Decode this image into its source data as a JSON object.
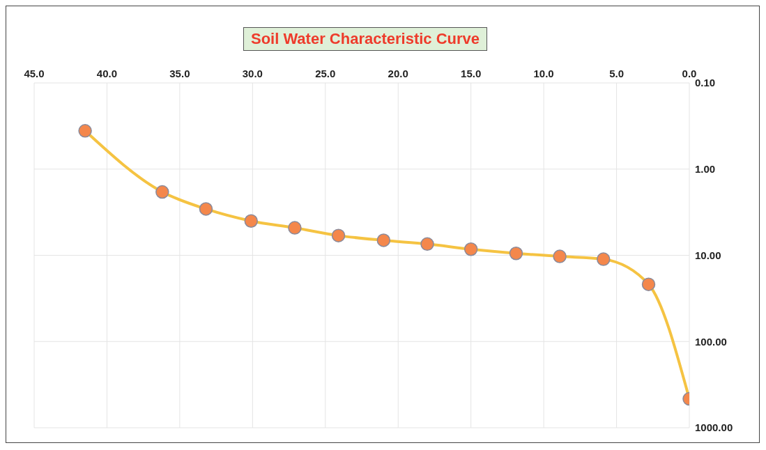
{
  "chart_data": {
    "type": "line",
    "title": "Soil Water Characteristic Curve",
    "x": [
      41.5,
      36.2,
      33.2,
      30.1,
      27.1,
      24.1,
      21.0,
      18.0,
      15.0,
      11.9,
      8.9,
      5.9,
      2.8,
      0
    ],
    "series": [
      {
        "color": "#f5c342",
        "values": [
          0.36,
          1.84,
          2.9,
          4.0,
          4.8,
          5.9,
          6.7,
          7.4,
          8.5,
          9.5,
          10.3,
          11.1,
          21.7,
          463
        ]
      }
    ],
    "xlim": [
      45,
      0
    ],
    "xticks": [
      {
        "value": 45,
        "label": "45.0"
      },
      {
        "value": 40,
        "label": "40.0"
      },
      {
        "value": 35,
        "label": "35.0"
      },
      {
        "value": 30,
        "label": "30.0"
      },
      {
        "value": 25,
        "label": "25.0"
      },
      {
        "value": 20,
        "label": "20.0"
      },
      {
        "value": 15,
        "label": "15.0"
      },
      {
        "value": 10,
        "label": "10.0"
      },
      {
        "value": 5,
        "label": "5.0"
      },
      {
        "value": 0,
        "label": "0.0"
      }
    ],
    "ylim": [
      1000,
      0.1
    ],
    "yticks": [
      {
        "value": 0.1,
        "label": "0.10"
      },
      {
        "value": 1,
        "label": "1.00"
      },
      {
        "value": 10,
        "label": "10.00"
      },
      {
        "value": 100,
        "label": "100.00"
      },
      {
        "value": 1000,
        "label": "1000.00"
      }
    ],
    "log": "y",
    "grid": true,
    "marker": "circle",
    "line_style": "solid"
  }
}
